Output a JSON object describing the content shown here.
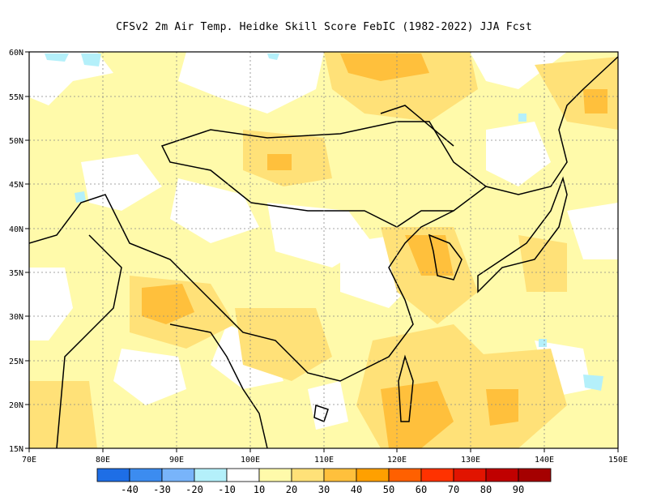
{
  "title": "CFSv2  2m Air Temp. Heidke Skill Score FebIC (1982-2022) JJA Fcst",
  "map": {
    "lon_range": [
      70,
      150
    ],
    "lat_range": [
      15,
      60
    ],
    "lon_ticks": [
      "70E",
      "80E",
      "90E",
      "100E",
      "110E",
      "120E",
      "130E",
      "140E",
      "150E"
    ],
    "lat_ticks": [
      "15N",
      "20N",
      "25N",
      "30N",
      "35N",
      "40N",
      "45N",
      "50N",
      "55N",
      "60N"
    ],
    "coastline_color": "#000000",
    "gridlines": "dotted"
  },
  "colorbar": {
    "colors": [
      "#1e6ee6",
      "#3c8cf0",
      "#78b4fa",
      "#b4f0fa",
      "#ffffff",
      "#fffaaa",
      "#ffe178",
      "#ffc03c",
      "#ffa000",
      "#ff6000",
      "#ff3200",
      "#e11400",
      "#c00000",
      "#a50000"
    ],
    "labels": [
      "-40",
      "-30",
      "-20",
      "-10",
      "10",
      "20",
      "30",
      "40",
      "50",
      "60",
      "70",
      "80",
      "90"
    ]
  }
}
